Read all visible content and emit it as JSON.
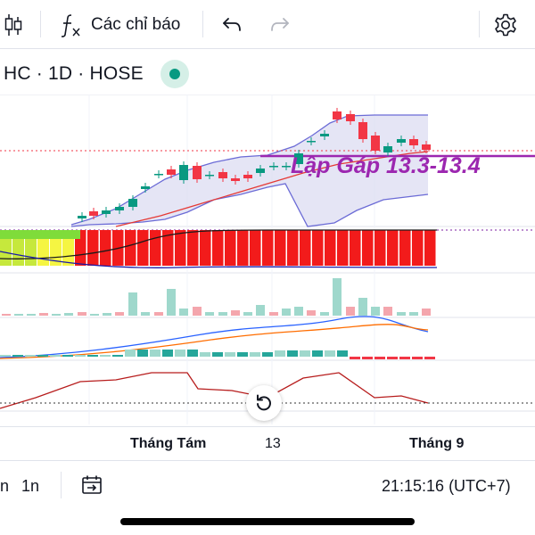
{
  "toolbar": {
    "candles_icon": "candlestick-icon",
    "indicators_label": "Các chỉ báo",
    "undo_icon": "undo-icon",
    "redo_icon": "redo-icon",
    "settings_icon": "gear-icon"
  },
  "symbol": {
    "text": "HC · 1D · HOSE",
    "status_color": "#089981"
  },
  "annotation": {
    "text": "Lập Gáp 13.3-13.4",
    "color": "#9c27b0"
  },
  "time_axis": {
    "labels": [
      "Tháng Tám",
      "13",
      "Tháng 9"
    ]
  },
  "bottom_bar": {
    "range_a": "n",
    "range_b": "1n",
    "time": "21:15:16 (UTC+7)"
  },
  "colors": {
    "up": "#089981",
    "down": "#f23645",
    "band": "#6b6bd6",
    "band_fill": "#dcdcf2",
    "ma": "#e53935",
    "accent": "#9c27b0"
  }
}
